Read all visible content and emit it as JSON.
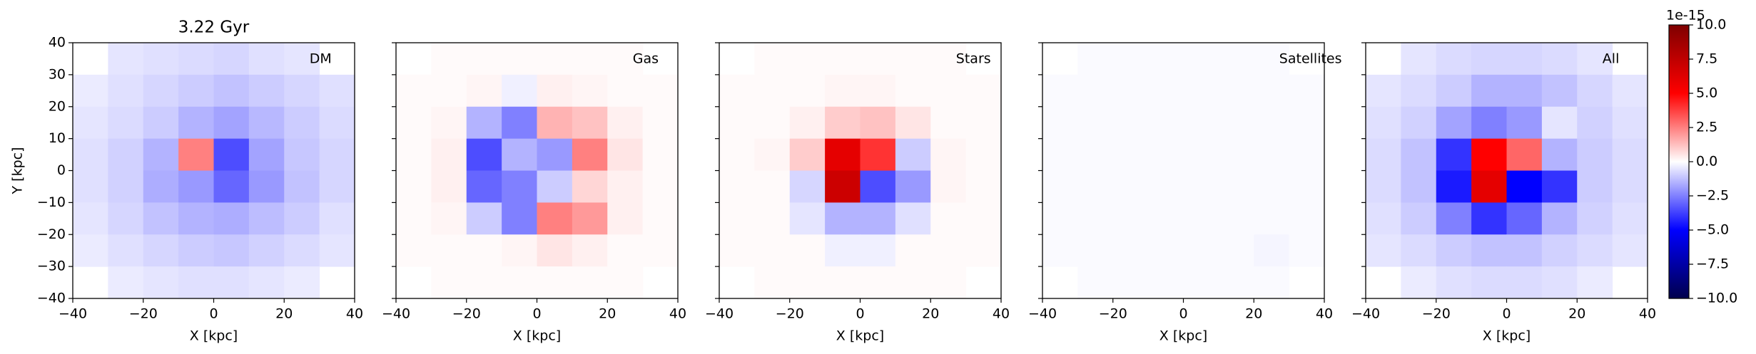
{
  "chart_data": [
    {
      "type": "heatmap",
      "title": "3.22 Gyr",
      "label": "DM",
      "xlabel": "X [kpc]",
      "ylabel": "Y [kpc]",
      "show_ytick_labels": true,
      "xlim": [
        -40,
        40
      ],
      "ylim": [
        -40,
        40
      ],
      "xticks": [
        {
          "value": -40,
          "label": "−40"
        },
        {
          "value": -20,
          "label": "−20"
        },
        0,
        20,
        40
      ],
      "yticks": [
        {
          "value": -40,
          "label": "−40"
        },
        {
          "value": -30,
          "label": "−30"
        },
        {
          "value": -20,
          "label": "−20"
        },
        {
          "value": -10,
          "label": "−10"
        },
        0,
        10,
        20,
        30,
        40
      ],
      "values": [
        [
          null,
          -0.5,
          -0.6,
          -0.7,
          -0.8,
          -0.6,
          -0.5,
          null
        ],
        [
          -0.4,
          -0.6,
          -0.8,
          -1.0,
          -1.2,
          -1.0,
          -0.8,
          -0.6
        ],
        [
          -0.5,
          -0.7,
          -1.0,
          -1.5,
          -1.8,
          -1.4,
          -1.0,
          -0.7
        ],
        [
          -0.6,
          -0.9,
          -1.5,
          2.5,
          -3.5,
          -1.8,
          -1.1,
          -0.8
        ],
        [
          -0.6,
          -0.9,
          -1.6,
          -2.0,
          -3.0,
          -2.0,
          -1.2,
          -0.8
        ],
        [
          -0.5,
          -0.8,
          -1.2,
          -1.5,
          -1.6,
          -1.3,
          -1.0,
          -0.6
        ],
        [
          -0.4,
          -0.6,
          -0.8,
          -1.0,
          -1.1,
          -0.9,
          -0.7,
          -0.5
        ],
        [
          null,
          -0.4,
          -0.5,
          -0.6,
          -0.6,
          -0.5,
          -0.4,
          null
        ]
      ]
    },
    {
      "type": "heatmap",
      "label": "Gas",
      "xlabel": "X [kpc]",
      "show_ytick_labels": false,
      "xlim": [
        -40,
        40
      ],
      "ylim": [
        -40,
        40
      ],
      "xticks": [
        {
          "value": -40,
          "label": "−40"
        },
        {
          "value": -20,
          "label": "−20"
        },
        0,
        20,
        40
      ],
      "yticks": [
        -40,
        -30,
        -20,
        -10,
        0,
        10,
        20,
        30,
        40
      ],
      "values": [
        [
          null,
          0.1,
          0.1,
          0.1,
          0.1,
          0.1,
          0.1,
          null
        ],
        [
          0.1,
          0.1,
          0.2,
          -0.3,
          0.3,
          0.2,
          0.1,
          0.1
        ],
        [
          0.1,
          0.2,
          -1.5,
          -2.5,
          1.5,
          1.2,
          0.3,
          0.1
        ],
        [
          0.1,
          0.3,
          -3.5,
          -1.5,
          -2.0,
          2.5,
          0.5,
          0.1
        ],
        [
          0.1,
          0.3,
          -3.0,
          -2.5,
          -1.0,
          0.8,
          0.3,
          0.1
        ],
        [
          0.1,
          0.2,
          -1.0,
          -2.5,
          2.5,
          2.0,
          0.3,
          0.1
        ],
        [
          0.1,
          0.1,
          0.1,
          0.2,
          0.5,
          0.3,
          0.1,
          0.1
        ],
        [
          null,
          0.1,
          0.1,
          0.1,
          0.1,
          0.1,
          0.1,
          null
        ]
      ]
    },
    {
      "type": "heatmap",
      "label": "Stars",
      "xlabel": "X [kpc]",
      "show_ytick_labels": false,
      "xlim": [
        -40,
        40
      ],
      "ylim": [
        -40,
        40
      ],
      "xticks": [
        {
          "value": -40,
          "label": "−40"
        },
        {
          "value": -20,
          "label": "−20"
        },
        0,
        20,
        40
      ],
      "yticks": [
        -40,
        -30,
        -20,
        -10,
        0,
        10,
        20,
        30,
        40
      ],
      "values": [
        [
          null,
          0.1,
          0.1,
          0.1,
          0.1,
          0.1,
          0.1,
          null
        ],
        [
          0.1,
          0.1,
          0.1,
          0.2,
          0.2,
          0.1,
          0.1,
          0.1
        ],
        [
          0.1,
          0.1,
          0.3,
          1.0,
          1.2,
          0.5,
          0.1,
          0.1
        ],
        [
          0.1,
          0.2,
          1.0,
          6.0,
          4.0,
          -1.0,
          0.2,
          0.1
        ],
        [
          0.1,
          0.1,
          -0.8,
          7.0,
          -3.5,
          -2.0,
          0.2,
          0.1
        ],
        [
          0.1,
          0.1,
          -0.5,
          -1.5,
          -1.5,
          -0.6,
          0.1,
          0.1
        ],
        [
          0.1,
          0.1,
          0.1,
          -0.3,
          -0.3,
          0.1,
          0.1,
          0.1
        ],
        [
          null,
          0.1,
          0.1,
          0.1,
          0.1,
          0.1,
          0.1,
          null
        ]
      ]
    },
    {
      "type": "heatmap",
      "label": "Satellites",
      "xlabel": "X [kpc]",
      "show_ytick_labels": false,
      "xlim": [
        -40,
        40
      ],
      "ylim": [
        -40,
        40
      ],
      "xticks": [
        {
          "value": -40,
          "label": "−40"
        },
        {
          "value": -20,
          "label": "−20"
        },
        0,
        20,
        40
      ],
      "yticks": [
        -40,
        -30,
        -20,
        -10,
        0,
        10,
        20,
        30,
        40
      ],
      "values": [
        [
          null,
          -0.1,
          -0.1,
          -0.1,
          -0.1,
          -0.1,
          -0.1,
          null
        ],
        [
          -0.1,
          -0.1,
          -0.1,
          -0.1,
          -0.1,
          -0.1,
          -0.1,
          -0.1
        ],
        [
          -0.1,
          -0.1,
          -0.1,
          -0.1,
          -0.1,
          -0.1,
          -0.1,
          -0.1
        ],
        [
          -0.1,
          -0.1,
          -0.1,
          -0.1,
          -0.1,
          -0.1,
          -0.1,
          -0.1
        ],
        [
          -0.1,
          -0.1,
          -0.1,
          -0.1,
          -0.1,
          -0.1,
          -0.1,
          -0.1
        ],
        [
          -0.1,
          -0.1,
          -0.1,
          -0.1,
          -0.1,
          -0.1,
          -0.1,
          -0.1
        ],
        [
          -0.1,
          -0.1,
          -0.1,
          -0.1,
          -0.1,
          -0.1,
          -0.2,
          -0.1
        ],
        [
          null,
          -0.1,
          -0.1,
          -0.1,
          -0.1,
          -0.1,
          -0.1,
          null
        ]
      ]
    },
    {
      "type": "heatmap",
      "label": "All",
      "xlabel": "X [kpc]",
      "show_ytick_labels": false,
      "xlim": [
        -40,
        40
      ],
      "ylim": [
        -40,
        40
      ],
      "xticks": [
        {
          "value": -40,
          "label": "−40"
        },
        {
          "value": -20,
          "label": "−20"
        },
        0,
        20,
        40
      ],
      "yticks": [
        -40,
        -30,
        -20,
        -10,
        0,
        10,
        20,
        30,
        40
      ],
      "values": [
        [
          null,
          -0.5,
          -0.7,
          -0.8,
          -0.8,
          -0.7,
          -0.5,
          null
        ],
        [
          -0.5,
          -0.7,
          -1.0,
          -1.5,
          -1.5,
          -1.2,
          -0.8,
          -0.5
        ],
        [
          -0.6,
          -0.9,
          -1.8,
          -2.5,
          -2.0,
          -0.5,
          -0.9,
          -0.6
        ],
        [
          -0.7,
          -1.2,
          -4.0,
          5.0,
          3.0,
          -1.5,
          -1.0,
          -0.7
        ],
        [
          -0.7,
          -1.2,
          -4.5,
          6.0,
          -5.0,
          -4.0,
          -1.0,
          -0.7
        ],
        [
          -0.6,
          -1.0,
          -2.5,
          -4.0,
          -3.0,
          -1.5,
          -0.9,
          -0.6
        ],
        [
          -0.5,
          -0.7,
          -1.0,
          -1.2,
          -1.2,
          -0.9,
          -0.7,
          -0.5
        ],
        [
          null,
          -0.4,
          -0.6,
          -0.7,
          -0.7,
          -0.6,
          -0.4,
          null
        ]
      ]
    },
    {
      "type": "colorbar",
      "offset_text": "1e-15",
      "clim": [
        -10,
        10
      ],
      "cmap": [
        "#00004c",
        "#0000ff",
        "#ffffff",
        "#ff0000",
        "#7f0000"
      ],
      "ticks": [
        {
          "value": 10,
          "label": "10.0"
        },
        7.5,
        {
          "value": 5,
          "label": "5.0"
        },
        2.5,
        {
          "value": 0,
          "label": "0.0"
        },
        {
          "value": -2.5,
          "label": "−2.5"
        },
        {
          "value": -5,
          "label": "−5.0"
        },
        {
          "value": -7.5,
          "label": "−7.5"
        },
        {
          "value": -10,
          "label": "−10.0"
        }
      ]
    }
  ]
}
